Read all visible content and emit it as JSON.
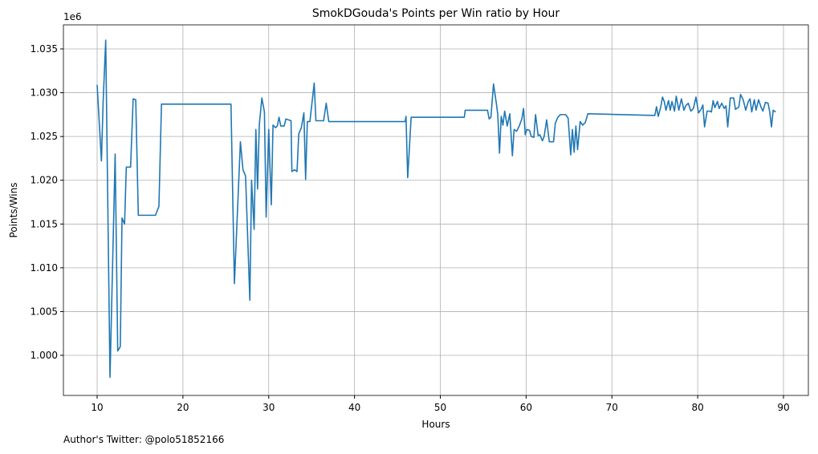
{
  "chart_data": {
    "type": "line",
    "title": "SmokDGouda's Points per Win ratio by Hour",
    "xlabel": "Hours",
    "ylabel": "Points/Wins",
    "y_offset_label": "1e6",
    "footer": "Author's Twitter: @polo51852166",
    "grid": true,
    "xlim": [
      6.07,
      92.9
    ],
    "ylim": [
      0.99542,
      1.03775
    ],
    "xticks": [
      10,
      20,
      30,
      40,
      50,
      60,
      70,
      80,
      90
    ],
    "yticks": [
      {
        "value": 1.0,
        "label": "1.000"
      },
      {
        "value": 1.005,
        "label": "1.005"
      },
      {
        "value": 1.01,
        "label": "1.010"
      },
      {
        "value": 1.015,
        "label": "1.015"
      },
      {
        "value": 1.02,
        "label": "1.020"
      },
      {
        "value": 1.025,
        "label": "1.025"
      },
      {
        "value": 1.03,
        "label": "1.030"
      },
      {
        "value": 1.035,
        "label": "1.035"
      }
    ],
    "series": [
      {
        "color": "#1f77b4",
        "x": [
          10.0,
          10.5,
          10.7,
          11.0,
          11.5,
          12.1,
          12.4,
          12.7,
          12.9,
          13.2,
          13.4,
          13.9,
          14.2,
          14.5,
          14.8,
          16.8,
          17.2,
          17.5,
          25.6,
          26.0,
          26.7,
          27.0,
          27.3,
          27.8,
          28.0,
          28.3,
          28.5,
          28.7,
          28.9,
          29.2,
          29.5,
          29.7,
          30.0,
          30.3,
          30.5,
          30.8,
          31.0,
          31.2,
          31.4,
          31.8,
          32.0,
          32.6,
          32.7,
          33.0,
          33.3,
          33.5,
          33.8,
          34.1,
          34.3,
          34.5,
          34.8,
          35.3,
          35.5,
          36.4,
          36.7,
          37.0,
          45.9,
          46.0,
          46.2,
          46.6,
          52.8,
          52.9,
          55.5,
          55.7,
          55.9,
          56.2,
          56.5,
          56.7,
          56.9,
          57.1,
          57.3,
          57.5,
          57.8,
          58.1,
          58.4,
          58.6,
          58.9,
          59.2,
          59.5,
          59.7,
          59.9,
          60.1,
          60.4,
          60.6,
          60.9,
          61.1,
          61.4,
          61.6,
          61.9,
          62.1,
          62.4,
          62.7,
          63.2,
          63.4,
          63.7,
          64.0,
          64.6,
          64.9,
          65.2,
          65.4,
          65.6,
          65.8,
          66.0,
          66.3,
          66.6,
          66.9,
          67.2,
          75.0,
          75.2,
          75.4,
          75.7,
          75.9,
          76.1,
          76.3,
          76.6,
          76.8,
          77.0,
          77.3,
          77.5,
          77.8,
          78.1,
          78.4,
          78.6,
          78.9,
          79.2,
          79.5,
          79.8,
          80.1,
          80.4,
          80.6,
          80.8,
          81.1,
          81.4,
          81.6,
          81.8,
          82.0,
          82.3,
          82.5,
          82.8,
          83.1,
          83.3,
          83.5,
          83.8,
          84.2,
          84.4,
          84.7,
          84.8,
          85.0,
          85.3,
          85.6,
          85.9,
          86.1,
          86.3,
          86.6,
          86.8,
          87.1,
          87.4,
          87.6,
          87.9,
          88.2,
          88.4,
          88.6,
          88.8,
          89.1
        ],
        "values": [
          1.0309,
          1.0222,
          1.029,
          1.036,
          0.9975,
          1.023,
          1.0005,
          1.001,
          1.0157,
          1.015,
          1.0215,
          1.0215,
          1.0293,
          1.0292,
          1.016,
          1.016,
          1.017,
          1.0287,
          1.0287,
          1.0082,
          1.0244,
          1.0212,
          1.0205,
          1.0063,
          1.02,
          1.0144,
          1.0258,
          1.019,
          1.0263,
          1.0294,
          1.0278,
          1.0158,
          1.0258,
          1.0172,
          1.0263,
          1.026,
          1.0262,
          1.0272,
          1.0262,
          1.0262,
          1.027,
          1.0268,
          1.021,
          1.0212,
          1.021,
          1.0253,
          1.026,
          1.0277,
          1.0201,
          1.0267,
          1.0267,
          1.0311,
          1.0268,
          1.0268,
          1.0288,
          1.0267,
          1.0267,
          1.0273,
          1.0203,
          1.0272,
          1.0272,
          1.028,
          1.028,
          1.027,
          1.0272,
          1.031,
          1.029,
          1.0275,
          1.0231,
          1.0273,
          1.0263,
          1.0279,
          1.0262,
          1.0276,
          1.0228,
          1.0258,
          1.0256,
          1.0262,
          1.027,
          1.0282,
          1.0252,
          1.0258,
          1.0257,
          1.025,
          1.0249,
          1.0275,
          1.0251,
          1.0252,
          1.0245,
          1.025,
          1.0269,
          1.0244,
          1.0244,
          1.0265,
          1.0272,
          1.0275,
          1.0275,
          1.0271,
          1.0229,
          1.0258,
          1.0232,
          1.0262,
          1.0235,
          1.0267,
          1.0263,
          1.0266,
          1.0276,
          1.0274,
          1.0284,
          1.0273,
          1.0284,
          1.0295,
          1.029,
          1.028,
          1.0291,
          1.028,
          1.029,
          1.0279,
          1.0296,
          1.028,
          1.0293,
          1.028,
          1.0285,
          1.0288,
          1.0279,
          1.0282,
          1.0295,
          1.0277,
          1.0281,
          1.0286,
          1.0261,
          1.0279,
          1.0279,
          1.0278,
          1.0291,
          1.0283,
          1.029,
          1.0282,
          1.0288,
          1.0282,
          1.0285,
          1.0261,
          1.0294,
          1.0294,
          1.0281,
          1.0283,
          1.0284,
          1.0298,
          1.0292,
          1.028,
          1.029,
          1.0293,
          1.0278,
          1.0292,
          1.028,
          1.0292,
          1.0283,
          1.0279,
          1.0289,
          1.0288,
          1.0278,
          1.0261,
          1.028,
          1.0278
        ]
      }
    ]
  }
}
